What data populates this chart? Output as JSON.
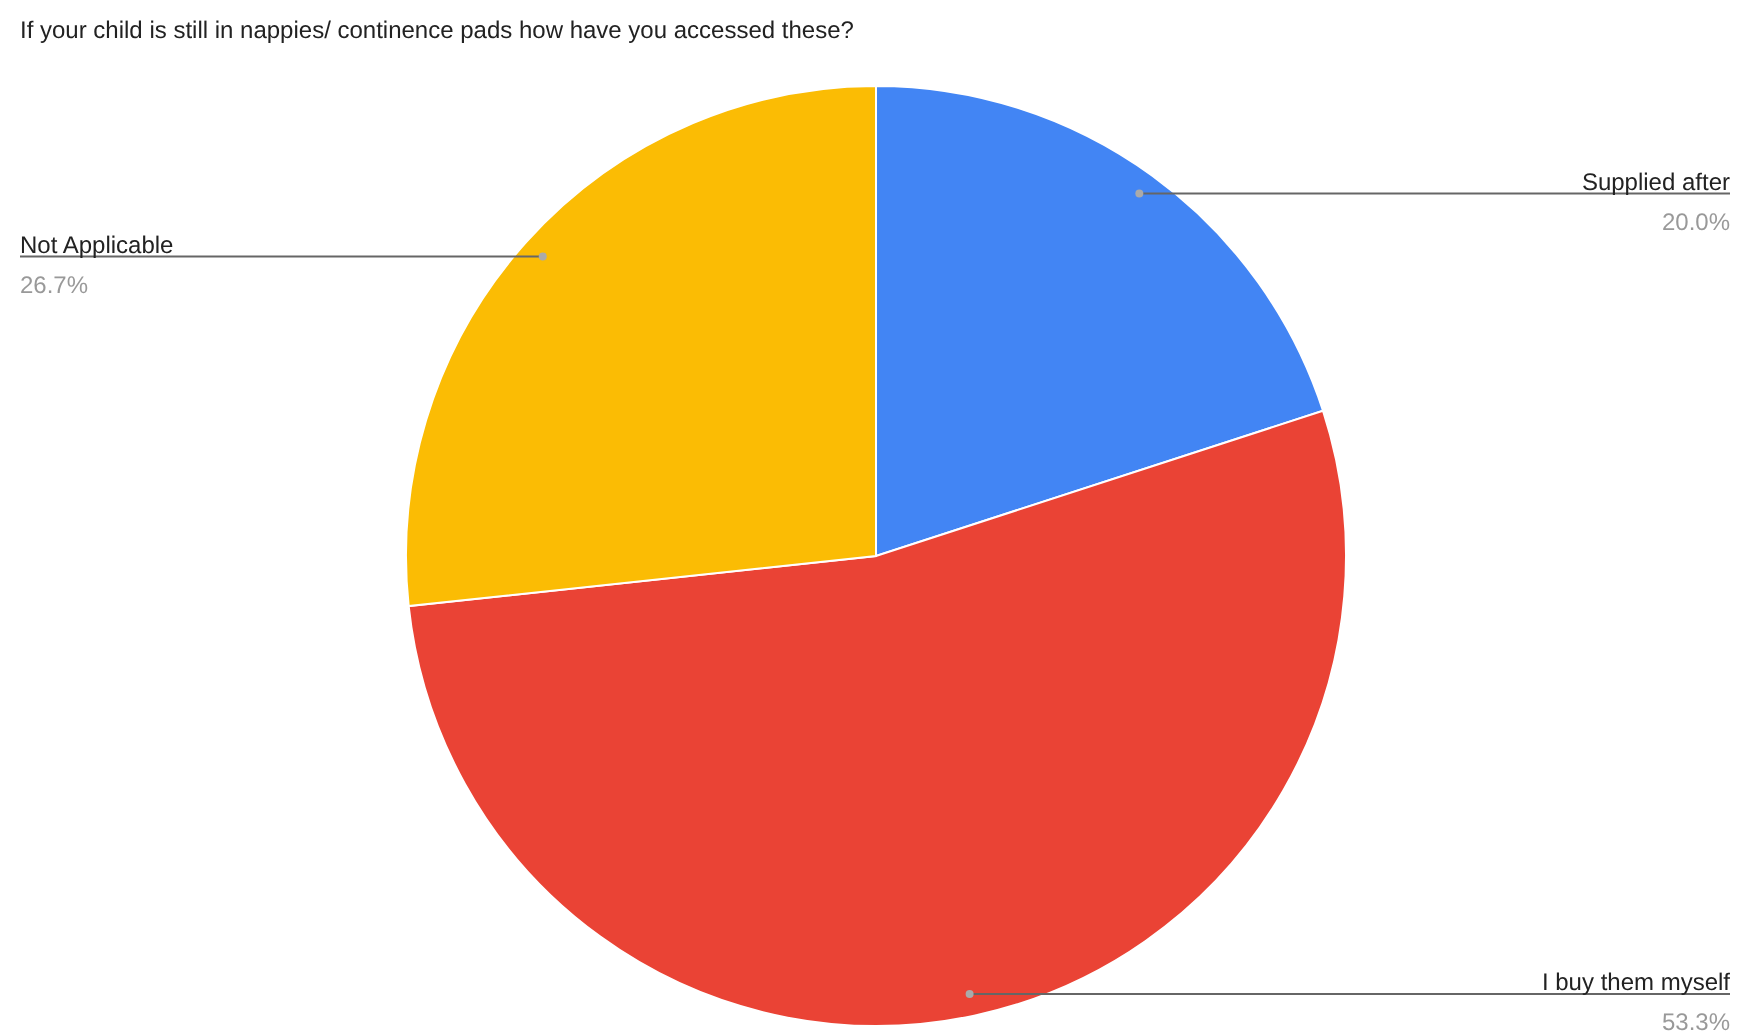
{
  "chart_data": {
    "type": "pie",
    "title": "If your child is still in nappies/ continence pads how have you accessed these?",
    "categories": [
      "Supplied after",
      "I buy them myself",
      "Not Applicable"
    ],
    "values": [
      20.0,
      53.3,
      26.7
    ],
    "colors": [
      "#4285f4",
      "#ea4335",
      "#fbbc04"
    ],
    "value_labels": [
      "20.0%",
      "53.3%",
      "26.7%"
    ],
    "legend": false
  }
}
